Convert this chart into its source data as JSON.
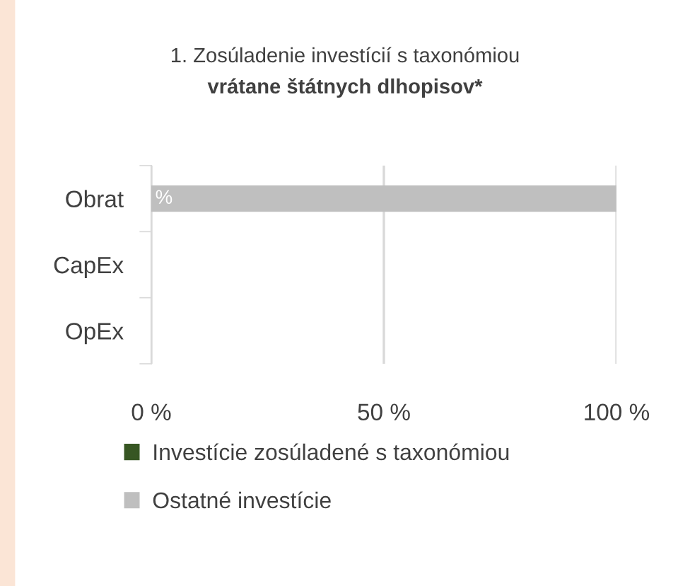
{
  "chart_data": {
    "type": "bar",
    "orientation": "horizontal",
    "stacked": true,
    "title": "1. Zosúladenie investícií s taxonómiou",
    "subtitle": "vrátane štátnych dlhopisov*",
    "categories": [
      "Obrat",
      "CapEx",
      "OpEx"
    ],
    "series": [
      {
        "name": "Investície zosúladené s taxonómiou",
        "color": "#375623",
        "values": [
          0,
          0,
          0
        ]
      },
      {
        "name": "Ostatné investície",
        "color": "#bfbfbf",
        "values": [
          100,
          0,
          0
        ]
      }
    ],
    "xlim": [
      0,
      100
    ],
    "xticks": [
      {
        "value": 0,
        "label": "0 %"
      },
      {
        "value": 50,
        "label": "50 %"
      },
      {
        "value": 100,
        "label": "100 %"
      }
    ],
    "grid": "x",
    "legend": "bottom",
    "annotations": [
      {
        "text": "%",
        "x": 0,
        "y": "Obrat"
      }
    ]
  }
}
